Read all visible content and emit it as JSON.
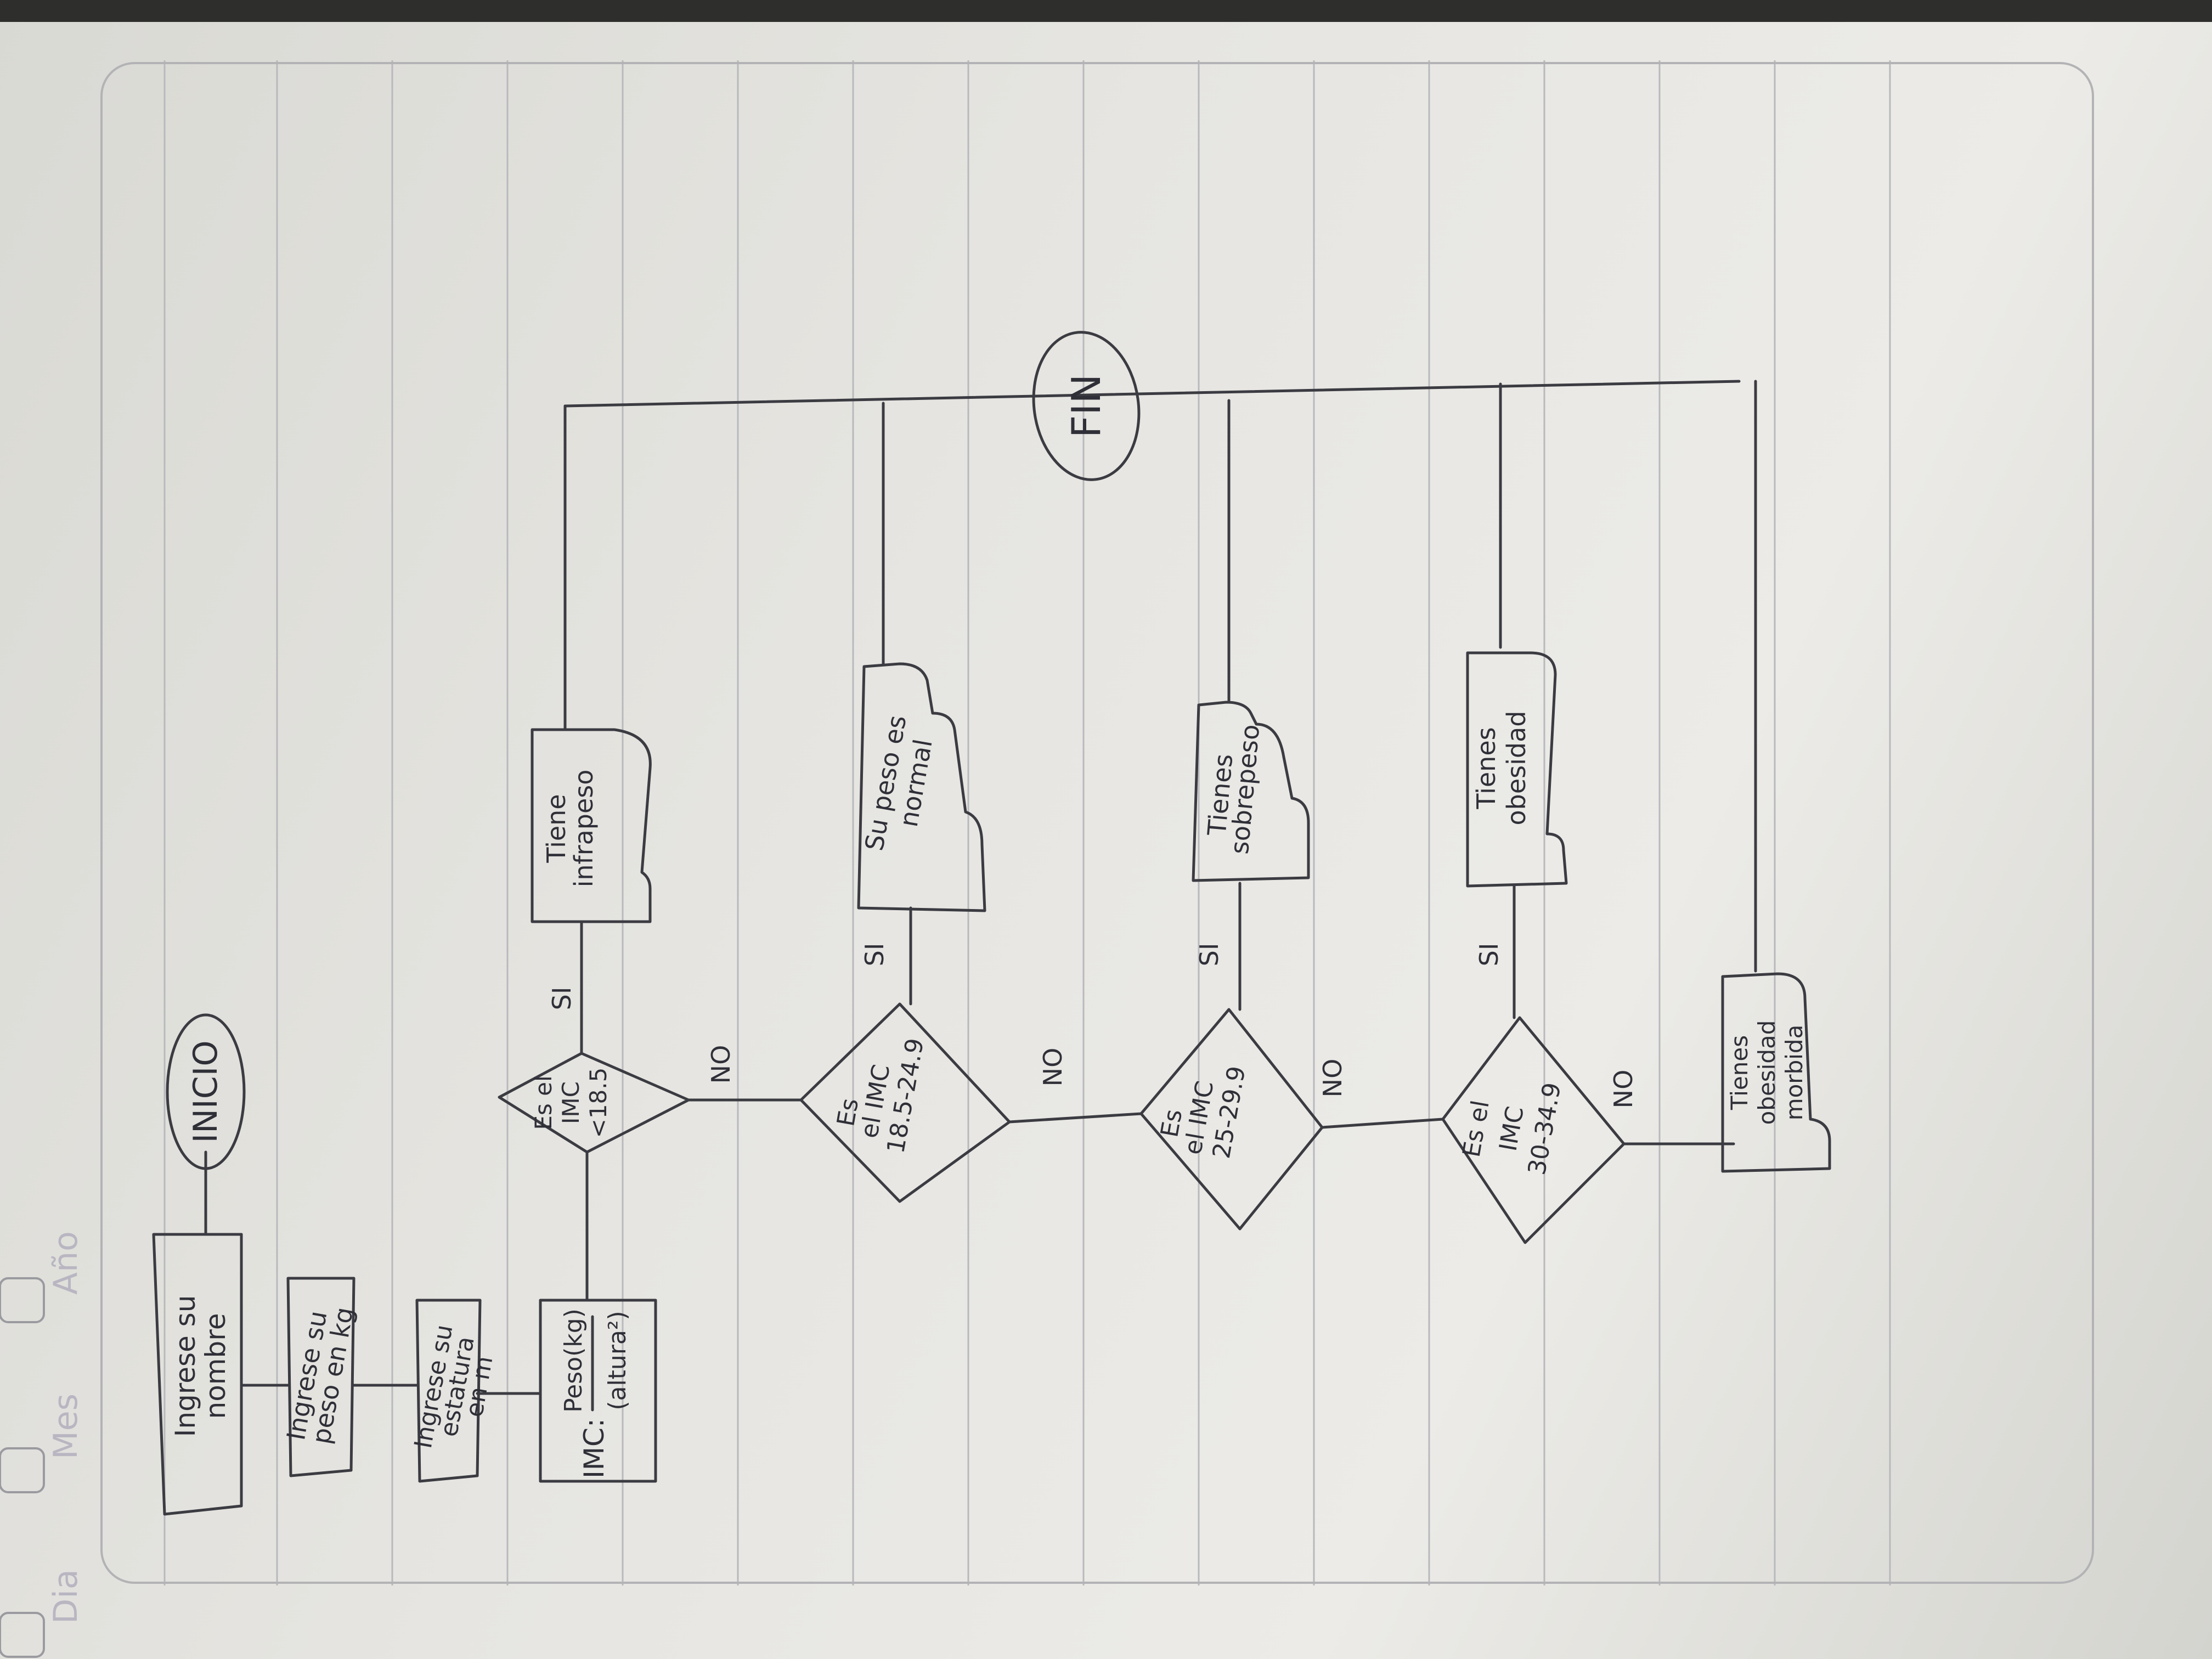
{
  "header": {
    "labels": [
      "Dia",
      "Mes",
      "Año"
    ]
  },
  "flowchart": {
    "start": "INICIO",
    "end": "FIN",
    "inputs": [
      [
        "Ingrese su",
        "nombre"
      ],
      [
        "Ingrese su",
        "peso en kg"
      ],
      [
        "Ingrese su",
        "estatura",
        "en m"
      ]
    ],
    "process": {
      "lhs": "IMC:",
      "numerator": "Peso(kg)",
      "denominator": "(altura²)"
    },
    "decisions": [
      [
        "Es el",
        "IMC",
        "<18.5"
      ],
      [
        "Es",
        "el IMC",
        "18.5-24.9"
      ],
      [
        "Es",
        "el IMC",
        "25-29.9"
      ],
      [
        "Es el",
        "IMC",
        "30-34.9"
      ]
    ],
    "outputs": [
      [
        "Tiene",
        "infrapeso"
      ],
      [
        "Su peso es",
        "normal"
      ],
      [
        "Tienes",
        "sobrepeso"
      ],
      [
        "Tienes",
        "obesidad"
      ],
      [
        "Tienes",
        "obesidad",
        "morbida"
      ]
    ],
    "yes_label": "SI",
    "no_label": "NO"
  },
  "colors": {
    "ink": "#3b3b42",
    "paper": "#e6e5e1",
    "ruled_lines": "#b8b9bd",
    "bleed_through": "#b9b6c2"
  }
}
